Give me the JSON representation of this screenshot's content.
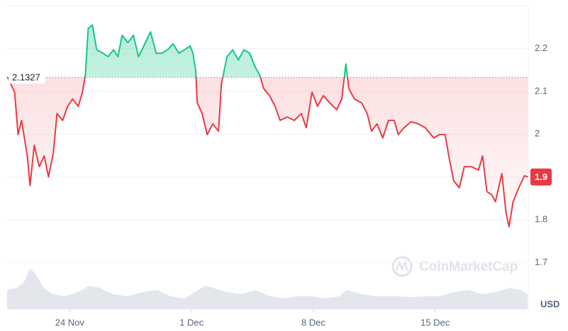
{
  "chart_data": {
    "type": "line",
    "baseline": 2.1327,
    "current_price": 1.9,
    "currency": "USD",
    "watermark": "CoinMarketCap",
    "xlim": [
      -3.6,
      26.35
    ],
    "xticks": [
      {
        "value": 0,
        "label": "24 Nov"
      },
      {
        "value": 7,
        "label": "1 Dec"
      },
      {
        "value": 14,
        "label": "8 Dec"
      },
      {
        "value": 21,
        "label": "15 Dec"
      }
    ],
    "ylim": [
      1.59,
      2.3
    ],
    "yticks": [
      1.7,
      1.8,
      2.0,
      2.1,
      2.2,
      {
        "value": 1.9,
        "label": "1.9"
      }
    ],
    "above_color": "#16c784",
    "below_color": "#ea3943",
    "series": [
      {
        "x": [
          -3.58,
          -3.17,
          -2.97,
          -2.77,
          -2.44,
          -2.28,
          -2.04,
          -1.75,
          -1.47,
          -1.22,
          -0.94,
          -0.73,
          -0.41,
          -0.12,
          0.16,
          0.49,
          0.73,
          0.9,
          1.06,
          1.3,
          1.55,
          1.91,
          2.2,
          2.52,
          2.77,
          3.01,
          3.34,
          3.66,
          3.95,
          4.35,
          4.64,
          4.97,
          5.29,
          5.62,
          5.94,
          6.27,
          6.59,
          6.92,
          7.08,
          7.24,
          7.33,
          7.61,
          7.9,
          8.22,
          8.55,
          8.71,
          8.87,
          9.04,
          9.36,
          9.69,
          10.01,
          10.34,
          10.66,
          10.91,
          11.15,
          11.48,
          11.8,
          12.09,
          12.49,
          12.9,
          13.31,
          13.59,
          13.92,
          14.24,
          14.57,
          14.94,
          15.34,
          15.63,
          15.87,
          16.04,
          16.36,
          16.77,
          17.09,
          17.34,
          17.66,
          17.99,
          18.31,
          18.64,
          18.88,
          19.21,
          19.62,
          20.02,
          20.43,
          20.92,
          21.25,
          21.57,
          21.82,
          22.06,
          22.39,
          22.67,
          23.08,
          23.49,
          23.72,
          23.97,
          24.26,
          24.46,
          24.83,
          25.07,
          25.24,
          25.48,
          25.81,
          26.13,
          26.33
        ],
        "values": [
          2.134,
          2.098,
          1.999,
          2.032,
          1.949,
          1.88,
          1.974,
          1.924,
          1.949,
          1.9,
          1.957,
          2.048,
          2.032,
          2.065,
          2.082,
          2.065,
          2.098,
          2.139,
          2.247,
          2.255,
          2.197,
          2.189,
          2.181,
          2.197,
          2.181,
          2.231,
          2.214,
          2.231,
          2.181,
          2.214,
          2.239,
          2.189,
          2.189,
          2.197,
          2.211,
          2.189,
          2.197,
          2.206,
          2.189,
          2.148,
          2.073,
          2.048,
          1.999,
          2.024,
          2.007,
          2.115,
          2.148,
          2.181,
          2.197,
          2.173,
          2.197,
          2.189,
          2.156,
          2.139,
          2.106,
          2.09,
          2.065,
          2.032,
          2.04,
          2.032,
          2.048,
          2.015,
          2.098,
          2.065,
          2.09,
          2.073,
          2.057,
          2.082,
          2.164,
          2.106,
          2.082,
          2.073,
          2.048,
          2.007,
          2.024,
          1.991,
          2.032,
          2.032,
          1.999,
          2.015,
          2.029,
          2.024,
          2.015,
          1.991,
          1.999,
          1.999,
          1.941,
          1.891,
          1.875,
          1.924,
          1.924,
          1.916,
          1.949,
          1.866,
          1.858,
          1.842,
          1.908,
          1.817,
          1.784,
          1.842,
          1.875,
          1.903,
          1.9
        ]
      }
    ],
    "volume": {
      "color": "#e3e7ec",
      "x": [
        -3.6,
        -3,
        -2.6,
        -2.3,
        -2,
        -1.5,
        -1,
        -0.3,
        0.5,
        1.1,
        1.7,
        2.5,
        3.3,
        4.2,
        5,
        5.8,
        6.6,
        7.2,
        7.8,
        8.2,
        9,
        9.9,
        10.7,
        11.5,
        12.3,
        13.1,
        13.9,
        14.7,
        15.5,
        15.9,
        16.8,
        17.6,
        18.8,
        19.6,
        20.4,
        21.2,
        22.1,
        22.9,
        23.7,
        24.5,
        25.3,
        25.9,
        26.3
      ],
      "values": [
        0.45,
        0.5,
        0.65,
        0.95,
        0.85,
        0.5,
        0.35,
        0.3,
        0.4,
        0.55,
        0.5,
        0.35,
        0.3,
        0.4,
        0.45,
        0.3,
        0.25,
        0.4,
        0.55,
        0.5,
        0.4,
        0.35,
        0.45,
        0.3,
        0.25,
        0.3,
        0.3,
        0.25,
        0.3,
        0.45,
        0.35,
        0.3,
        0.3,
        0.28,
        0.3,
        0.3,
        0.4,
        0.45,
        0.35,
        0.4,
        0.5,
        0.45,
        0.35
      ]
    }
  }
}
